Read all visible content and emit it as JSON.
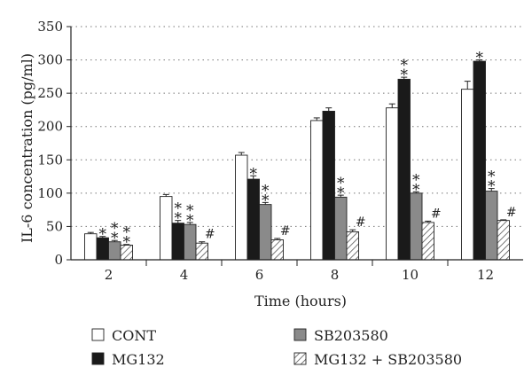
{
  "chart_data": {
    "type": "bar",
    "xlabel": "Time (hours)",
    "ylabel": "IL-6 concentration (pg/ml)",
    "categories": [
      "2",
      "4",
      "6",
      "8",
      "10",
      "12"
    ],
    "ylim": [
      0,
      350
    ],
    "yticks": [
      0,
      50,
      100,
      150,
      200,
      250,
      300,
      350
    ],
    "grid": "horizontal dotted",
    "legend_position": "bottom",
    "series": [
      {
        "name": "CONT",
        "fill": "white",
        "values": [
          39,
          95,
          157,
          209,
          228,
          256
        ],
        "errors": [
          2,
          3,
          4,
          4,
          6,
          12
        ],
        "marks": [
          "",
          "",
          "",
          "",
          "",
          ""
        ]
      },
      {
        "name": "MG132",
        "fill": "black",
        "values": [
          33,
          55,
          121,
          223,
          271,
          298
        ],
        "errors": [
          2,
          4,
          5,
          5,
          3,
          2
        ],
        "marks": [
          "*",
          "**",
          "*",
          "",
          "**",
          "*"
        ]
      },
      {
        "name": "SB203580",
        "fill": "gray",
        "values": [
          27,
          53,
          83,
          94,
          100,
          103
        ],
        "errors": [
          2,
          3,
          3,
          3,
          2,
          4
        ],
        "marks": [
          "**",
          "**",
          "**",
          "**",
          "**",
          "**"
        ]
      },
      {
        "name": "MG132 + SB203580",
        "fill": "hatched",
        "values": [
          22,
          25,
          30,
          42,
          56,
          59
        ],
        "errors": [
          1,
          2,
          2,
          3,
          2,
          1
        ],
        "marks": [
          "**",
          "#",
          "#",
          "#",
          "#",
          "#"
        ]
      }
    ],
    "colors": {
      "cont": "#ffffff",
      "mg132": "#1a1a1a",
      "sb": "#8a8a8a",
      "hatch": "#555555"
    }
  }
}
